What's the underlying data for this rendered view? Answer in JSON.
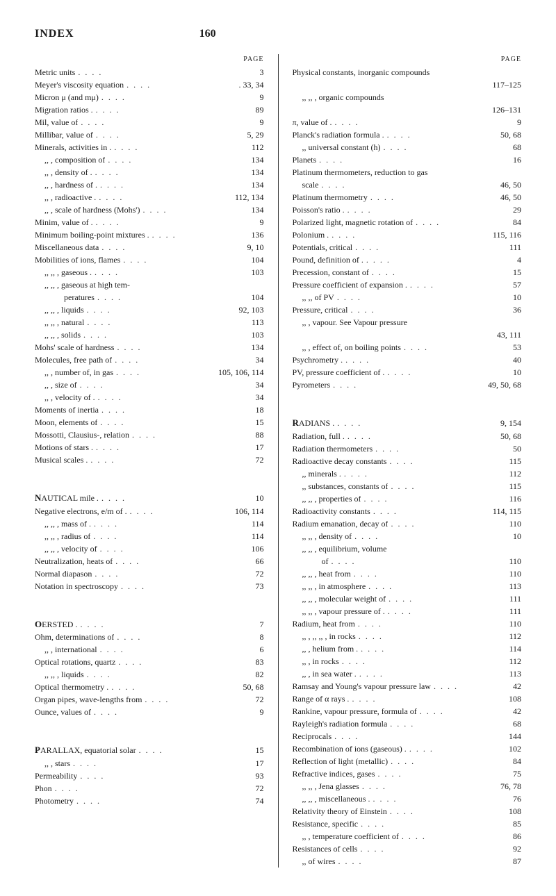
{
  "header": {
    "title": "INDEX",
    "pageNumber": "160"
  },
  "leftColumn": {
    "pageLabel": "PAGE",
    "entries": [
      {
        "text": "Metric units",
        "page": "3",
        "indent": 0
      },
      {
        "text": "Meyer's viscosity equation",
        "page": ". 33, 34",
        "indent": 0
      },
      {
        "text": "Micron μ (and mμ)",
        "page": "9",
        "indent": 0
      },
      {
        "text": "Migration ratios .",
        "page": "89",
        "indent": 0
      },
      {
        "text": "Mil, value of",
        "page": "9",
        "indent": 0
      },
      {
        "text": "Millibar, value of",
        "page": "5, 29",
        "indent": 0
      },
      {
        "text": "Minerals, activities in .",
        "page": "112",
        "indent": 0
      },
      {
        "text": ",,      , composition of",
        "page": "134",
        "indent": 1
      },
      {
        "text": ",,      , density of   .",
        "page": "134",
        "indent": 1
      },
      {
        "text": ",,      , hardness of .",
        "page": "134",
        "indent": 1
      },
      {
        "text": ",,      , radioactive .",
        "page": "112, 134",
        "indent": 1
      },
      {
        "text": ",,      , scale of hardness (Mohs')",
        "page": "134",
        "indent": 1
      },
      {
        "text": "Minim, value of .",
        "page": "9",
        "indent": 0
      },
      {
        "text": "Minimum boiling-point mixtures .",
        "page": "136",
        "indent": 0
      },
      {
        "text": "Miscellaneous data",
        "page": "9, 10",
        "indent": 0
      },
      {
        "text": "Mobilities of ions, flames",
        "page": "104",
        "indent": 0
      },
      {
        "text": ",,          ,,       , gaseous .",
        "page": "103",
        "indent": 1
      },
      {
        "text": ",,          ,,       , gaseous at high tem-",
        "page": "",
        "indent": 1
      },
      {
        "text": "                          peratures",
        "page": "104",
        "indent": 3
      },
      {
        "text": ",,          ,,       , liquids",
        "page": "92, 103",
        "indent": 1
      },
      {
        "text": ",,          ,,       , natural",
        "page": "113",
        "indent": 1
      },
      {
        "text": ",,          ,,       , solids",
        "page": "103",
        "indent": 1
      },
      {
        "text": "Mohs' scale of hardness",
        "page": "134",
        "indent": 0
      },
      {
        "text": "Molecules, free path of",
        "page": "34",
        "indent": 0
      },
      {
        "text": ",,        , number of, in gas",
        "page": "105, 106, 114",
        "indent": 1
      },
      {
        "text": ",,        , size of",
        "page": "34",
        "indent": 1
      },
      {
        "text": ",,        , velocity of .",
        "page": "34",
        "indent": 1
      },
      {
        "text": "Moments of inertia",
        "page": "18",
        "indent": 0
      },
      {
        "text": "Moon, elements of",
        "page": "15",
        "indent": 0
      },
      {
        "text": "Mossotti, Clausius-, relation",
        "page": "88",
        "indent": 0
      },
      {
        "text": "Motions of stars .",
        "page": "17",
        "indent": 0
      },
      {
        "text": "Musical scales .",
        "page": "72",
        "indent": 0
      }
    ],
    "section2": [
      {
        "text": "NAUTICAL mile .",
        "page": "10",
        "indent": 0,
        "letter": "N"
      },
      {
        "text": "Negative electrons, e/m of .",
        "page": "106, 114",
        "indent": 0
      },
      {
        "text": ",,            ,,     , mass of .",
        "page": "114",
        "indent": 1
      },
      {
        "text": ",,            ,,     , radius of",
        "page": "114",
        "indent": 1
      },
      {
        "text": ",,            ,,     , velocity of",
        "page": "106",
        "indent": 1
      },
      {
        "text": "Neutralization, heats of",
        "page": "66",
        "indent": 0
      },
      {
        "text": "Normal diapason",
        "page": "72",
        "indent": 0
      },
      {
        "text": "Notation in spectroscopy",
        "page": "73",
        "indent": 0
      }
    ],
    "section3": [
      {
        "text": "OERSTED .",
        "page": "7",
        "indent": 0,
        "letter": "O"
      },
      {
        "text": "Ohm, determinations of",
        "page": "8",
        "indent": 0
      },
      {
        "text": ",,   , international",
        "page": "6",
        "indent": 1
      },
      {
        "text": "Optical rotations, quartz",
        "page": "83",
        "indent": 0
      },
      {
        "text": ",,         ,,     , liquids",
        "page": "82",
        "indent": 1
      },
      {
        "text": "Optical thermometry .",
        "page": "50, 68",
        "indent": 0
      },
      {
        "text": "Organ pipes, wave-lengths from",
        "page": "72",
        "indent": 0
      },
      {
        "text": "Ounce, values of",
        "page": "9",
        "indent": 0
      }
    ],
    "section4": [
      {
        "text": "PARALLAX, equatorial solar",
        "page": "15",
        "indent": 0,
        "letter": "P"
      },
      {
        "text": ",,        , stars",
        "page": "17",
        "indent": 1
      },
      {
        "text": "Permeability",
        "page": "93",
        "indent": 0
      },
      {
        "text": "Phon",
        "page": "72",
        "indent": 0
      },
      {
        "text": "Photometry",
        "page": "74",
        "indent": 0
      }
    ]
  },
  "rightColumn": {
    "pageLabel": "PAGE",
    "entries": [
      {
        "text": "Physical constants, inorganic compounds",
        "page": "",
        "indent": 0
      },
      {
        "text": "",
        "page": "117–125",
        "indent": 0
      },
      {
        "text": ",,          ,,      , organic compounds",
        "page": "",
        "indent": 1
      },
      {
        "text": "",
        "page": "126–131",
        "indent": 0
      },
      {
        "text": "π, value of .",
        "page": "9",
        "indent": 0
      },
      {
        "text": "Planck's radiation formula .",
        "page": "50, 68",
        "indent": 0
      },
      {
        "text": ",,      universal constant (h)",
        "page": "68",
        "indent": 1
      },
      {
        "text": "Planets",
        "page": "16",
        "indent": 0
      },
      {
        "text": "Platinum thermometers, reduction to gas",
        "page": "",
        "indent": 0
      },
      {
        "text": "   scale",
        "page": "46, 50",
        "indent": 1
      },
      {
        "text": "Platinum thermometry",
        "page": "46, 50",
        "indent": 0
      },
      {
        "text": "Poisson's ratio .",
        "page": "29",
        "indent": 0
      },
      {
        "text": "Polarized light, magnetic rotation of",
        "page": "84",
        "indent": 0
      },
      {
        "text": "Polonium .",
        "page": "115, 116",
        "indent": 0
      },
      {
        "text": "Potentials, critical",
        "page": "111",
        "indent": 0
      },
      {
        "text": "Pound, definition of .",
        "page": "4",
        "indent": 0
      },
      {
        "text": "Precession, constant of",
        "page": "15",
        "indent": 0
      },
      {
        "text": "Pressure coefficient of expansion .",
        "page": "57",
        "indent": 0
      },
      {
        "text": ",,          ,,     of PV",
        "page": "10",
        "indent": 1
      },
      {
        "text": "Pressure, critical",
        "page": "36",
        "indent": 0
      },
      {
        "text": ",,   , vapour.   See Vapour pressure",
        "page": "",
        "indent": 1
      },
      {
        "text": "",
        "page": "43, 111",
        "indent": 0
      },
      {
        "text": ",,   , effect of, on boiling points",
        "page": "53",
        "indent": 1
      },
      {
        "text": "Psychrometry .",
        "page": "40",
        "indent": 0
      },
      {
        "text": "PV, pressure coefficient of .",
        "page": "10",
        "indent": 0
      },
      {
        "text": "Pyrometers",
        "page": "49, 50, 68",
        "indent": 0
      }
    ],
    "section2": [
      {
        "text": "RADIANS .",
        "page": "9, 154",
        "indent": 0,
        "letter": "R"
      },
      {
        "text": "Radiation, full .",
        "page": "50, 68",
        "indent": 0
      },
      {
        "text": "Radiation thermometers",
        "page": "50",
        "indent": 0
      },
      {
        "text": "Radioactive decay constants",
        "page": "115",
        "indent": 0
      },
      {
        "text": ",,          minerals .",
        "page": "112",
        "indent": 1
      },
      {
        "text": ",,          substances, constants of",
        "page": "115",
        "indent": 1
      },
      {
        "text": ",,               ,,     , properties of",
        "page": "116",
        "indent": 1
      },
      {
        "text": "Radioactivity constants",
        "page": "114, 115",
        "indent": 0
      },
      {
        "text": "Radium emanation, decay of",
        "page": "110",
        "indent": 0
      },
      {
        "text": ",,          ,,     , density of",
        "page": "10",
        "indent": 1
      },
      {
        "text": ",,          ,,     , equilibrium, volume",
        "page": "",
        "indent": 1
      },
      {
        "text": "                          of",
        "page": "110",
        "indent": 3
      },
      {
        "text": ",,          ,,     , heat from",
        "page": "110",
        "indent": 1
      },
      {
        "text": ",,          ,,     , in atmosphere",
        "page": "113",
        "indent": 1
      },
      {
        "text": ",,          ,,     , molecular weight of",
        "page": "111",
        "indent": 1
      },
      {
        "text": ",,          ,,     , vapour pressure of .",
        "page": "111",
        "indent": 1
      },
      {
        "text": "Radium, heat from",
        "page": "110",
        "indent": 0
      },
      {
        "text": ",,   ,   ,,    ,,  , in rocks",
        "page": "112",
        "indent": 1
      },
      {
        "text": ",,    , helium from .",
        "page": "114",
        "indent": 1
      },
      {
        "text": ",,    , in rocks",
        "page": "112",
        "indent": 1
      },
      {
        "text": ",,    , in sea water .",
        "page": "113",
        "indent": 1
      },
      {
        "text": "Ramsay and Young's vapour pressure law",
        "page": "42",
        "indent": 0
      },
      {
        "text": "Range of α rays .",
        "page": "108",
        "indent": 0
      },
      {
        "text": "Rankine, vapour pressure, formula of",
        "page": "42",
        "indent": 0
      },
      {
        "text": "Rayleigh's radiation formula",
        "page": "68",
        "indent": 0
      },
      {
        "text": "Reciprocals",
        "page": "144",
        "indent": 0
      },
      {
        "text": "Recombination of ions (gaseous) .",
        "page": "102",
        "indent": 0
      },
      {
        "text": "Reflection of light (metallic)",
        "page": "84",
        "indent": 0
      },
      {
        "text": "Refractive indices, gases",
        "page": "75",
        "indent": 0
      },
      {
        "text": ",,          ,,   , Jena glasses",
        "page": "76, 78",
        "indent": 1
      },
      {
        "text": ",,          ,,   , miscellaneous .",
        "page": "76",
        "indent": 1
      },
      {
        "text": "Relativity theory of Einstein",
        "page": "108",
        "indent": 0
      },
      {
        "text": "Resistance, specific",
        "page": "85",
        "indent": 0
      },
      {
        "text": ",,        , temperature coefficient of",
        "page": "86",
        "indent": 1
      },
      {
        "text": "Resistances of cells",
        "page": "92",
        "indent": 0
      },
      {
        "text": ",,          of wires",
        "page": "87",
        "indent": 1
      }
    ]
  }
}
